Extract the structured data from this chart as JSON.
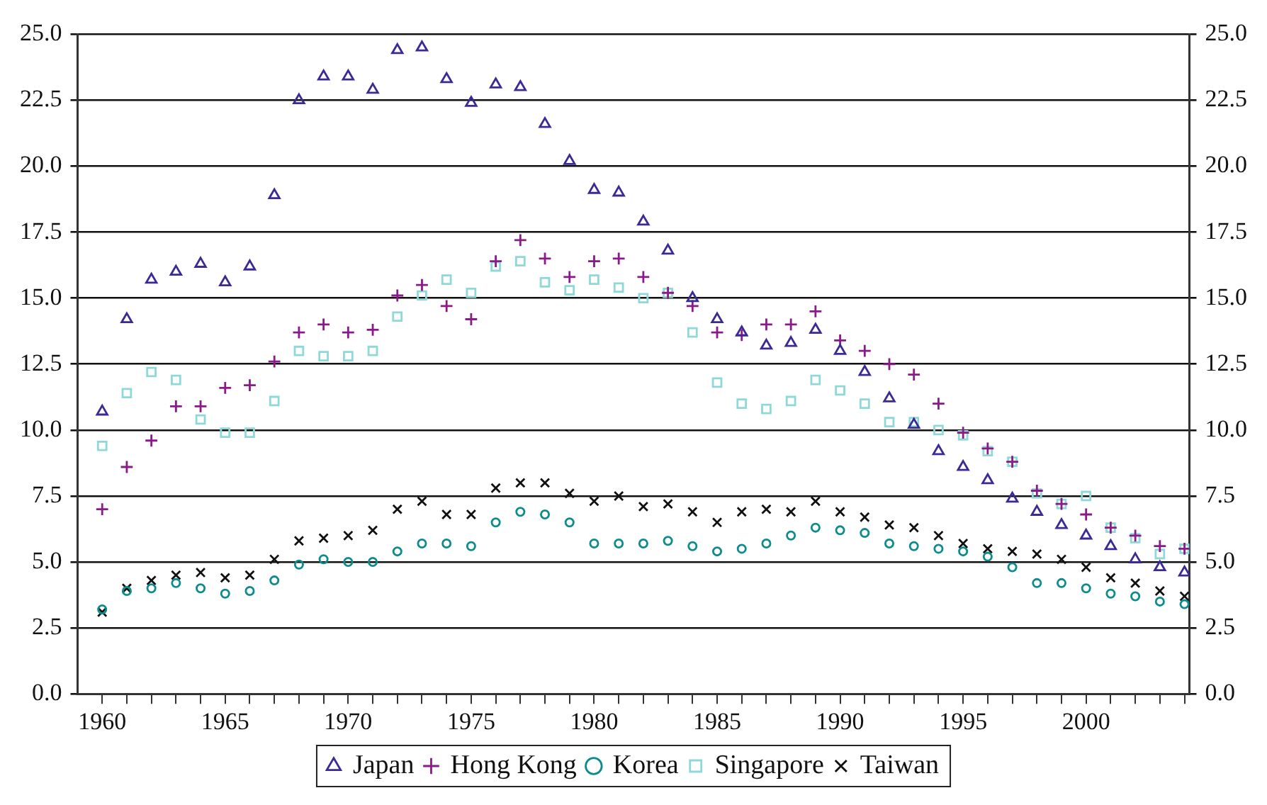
{
  "chart_data": {
    "type": "scatter",
    "x": [
      1960,
      1961,
      1962,
      1963,
      1964,
      1965,
      1966,
      1967,
      1968,
      1969,
      1970,
      1971,
      1972,
      1973,
      1974,
      1975,
      1976,
      1977,
      1978,
      1979,
      1980,
      1981,
      1982,
      1983,
      1984,
      1985,
      1986,
      1987,
      1988,
      1989,
      1990,
      1991,
      1992,
      1993,
      1994,
      1995,
      1996,
      1997,
      1998,
      1999,
      2000,
      2001,
      2002,
      2003,
      2004
    ],
    "series": [
      {
        "name": "Japan",
        "color": "#3a2a96",
        "marker": "triangle",
        "values": [
          10.7,
          14.2,
          15.7,
          16.0,
          16.3,
          15.6,
          16.2,
          18.9,
          22.5,
          23.4,
          23.4,
          22.9,
          24.4,
          24.5,
          23.3,
          22.4,
          23.1,
          23.0,
          21.6,
          20.2,
          19.1,
          19.0,
          17.9,
          16.8,
          15.0,
          14.2,
          13.7,
          13.2,
          13.3,
          13.8,
          13.0,
          12.2,
          11.2,
          10.2,
          9.2,
          8.6,
          8.1,
          7.4,
          6.9,
          6.4,
          6.0,
          5.6,
          5.1,
          4.8,
          4.6
        ]
      },
      {
        "name": "Hong Kong",
        "color": "#8b1a89",
        "marker": "plus",
        "values": [
          7.0,
          8.6,
          9.6,
          10.9,
          10.9,
          11.6,
          11.7,
          12.6,
          13.7,
          14.0,
          13.7,
          13.8,
          15.1,
          15.5,
          14.7,
          14.2,
          16.4,
          17.2,
          16.5,
          15.8,
          16.4,
          16.5,
          15.8,
          15.2,
          14.7,
          13.7,
          13.6,
          14.0,
          14.0,
          14.5,
          13.4,
          13.0,
          12.5,
          12.1,
          11.0,
          9.9,
          9.3,
          8.8,
          7.7,
          7.2,
          6.8,
          6.3,
          6.0,
          5.6,
          5.5
        ]
      },
      {
        "name": "Korea",
        "color": "#0e8c8c",
        "marker": "circle",
        "values": [
          3.2,
          3.9,
          4.0,
          4.2,
          4.0,
          3.8,
          3.9,
          4.3,
          4.9,
          5.1,
          5.0,
          5.0,
          5.4,
          5.7,
          5.7,
          5.6,
          6.5,
          6.9,
          6.8,
          6.5,
          5.7,
          5.7,
          5.7,
          5.8,
          5.6,
          5.4,
          5.5,
          5.7,
          6.0,
          6.3,
          6.2,
          6.1,
          5.7,
          5.6,
          5.5,
          5.4,
          5.2,
          4.8,
          4.2,
          4.2,
          4.0,
          3.8,
          3.7,
          3.5,
          3.4
        ]
      },
      {
        "name": "Singapore",
        "color": "#8fd8d8",
        "marker": "square",
        "values": [
          9.4,
          11.4,
          12.2,
          11.9,
          10.4,
          9.9,
          9.9,
          11.1,
          13.0,
          12.8,
          12.8,
          13.0,
          14.3,
          15.1,
          15.7,
          15.2,
          16.2,
          16.4,
          15.6,
          15.3,
          15.7,
          15.4,
          15.0,
          15.2,
          13.7,
          11.8,
          11.0,
          10.8,
          11.1,
          11.9,
          11.5,
          11.0,
          10.3,
          10.3,
          10.0,
          9.8,
          9.2,
          8.8,
          7.6,
          7.2,
          7.5,
          6.3,
          5.9,
          5.3,
          5.5
        ]
      },
      {
        "name": "Taiwan",
        "color": "#111111",
        "marker": "cross",
        "values": [
          3.1,
          4.0,
          4.3,
          4.5,
          4.6,
          4.4,
          4.5,
          5.1,
          5.8,
          5.9,
          6.0,
          6.2,
          7.0,
          7.3,
          6.8,
          6.8,
          7.8,
          8.0,
          8.0,
          7.6,
          7.3,
          7.5,
          7.1,
          7.2,
          6.9,
          6.5,
          6.9,
          7.0,
          6.9,
          7.3,
          6.9,
          6.7,
          6.4,
          6.3,
          6.0,
          5.7,
          5.5,
          5.4,
          5.3,
          5.1,
          4.8,
          4.4,
          4.2,
          3.9,
          3.7
        ]
      }
    ],
    "xlim": [
      1959,
      2004.2
    ],
    "xticks": [
      1960,
      {
        "value": 1961,
        "label": null
      },
      {
        "value": 1962,
        "label": null
      },
      {
        "value": 1963,
        "label": null
      },
      {
        "value": 1964,
        "label": null
      },
      1965,
      {
        "value": 1966,
        "label": null
      },
      {
        "value": 1967,
        "label": null
      },
      {
        "value": 1968,
        "label": null
      },
      {
        "value": 1969,
        "label": null
      },
      1970,
      {
        "value": 1971,
        "label": null
      },
      {
        "value": 1972,
        "label": null
      },
      {
        "value": 1973,
        "label": null
      },
      {
        "value": 1974,
        "label": null
      },
      1975,
      {
        "value": 1976,
        "label": null
      },
      {
        "value": 1977,
        "label": null
      },
      {
        "value": 1978,
        "label": null
      },
      {
        "value": 1979,
        "label": null
      },
      1980,
      {
        "value": 1981,
        "label": null
      },
      {
        "value": 1982,
        "label": null
      },
      {
        "value": 1983,
        "label": null
      },
      {
        "value": 1984,
        "label": null
      },
      1985,
      {
        "value": 1986,
        "label": null
      },
      {
        "value": 1987,
        "label": null
      },
      {
        "value": 1988,
        "label": null
      },
      {
        "value": 1989,
        "label": null
      },
      1990,
      {
        "value": 1991,
        "label": null
      },
      {
        "value": 1992,
        "label": null
      },
      {
        "value": 1993,
        "label": null
      },
      {
        "value": 1994,
        "label": null
      },
      1995,
      {
        "value": 1996,
        "label": null
      },
      {
        "value": 1997,
        "label": null
      },
      {
        "value": 1998,
        "label": null
      },
      {
        "value": 1999,
        "label": null
      },
      2000,
      {
        "value": 2001,
        "label": null
      },
      {
        "value": 2002,
        "label": null
      },
      {
        "value": 2003,
        "label": null
      },
      {
        "value": 2004,
        "label": null
      }
    ],
    "ylim": [
      0,
      25
    ],
    "yticks": [
      {
        "value": 0,
        "label": "0.0"
      },
      {
        "value": 2.5,
        "label": "2.5"
      },
      {
        "value": 5,
        "label": "5.0"
      },
      {
        "value": 7.5,
        "label": "7.5"
      },
      {
        "value": 10,
        "label": "10.0"
      },
      {
        "value": 12.5,
        "label": "12.5"
      },
      {
        "value": 15,
        "label": "15.0"
      },
      {
        "value": 17.5,
        "label": "17.5"
      },
      {
        "value": 20,
        "label": "20.0"
      },
      {
        "value": 22.5,
        "label": "22.5"
      },
      {
        "value": 25,
        "label": "25.0"
      }
    ],
    "y2lim": [
      0,
      25
    ],
    "y2ticks": [
      {
        "value": 0,
        "label": "0.0"
      },
      {
        "value": 2.5,
        "label": "2.5"
      },
      {
        "value": 5,
        "label": "5.0"
      },
      {
        "value": 7.5,
        "label": "7.5"
      },
      {
        "value": 10,
        "label": "10.0"
      },
      {
        "value": 12.5,
        "label": "12.5"
      },
      {
        "value": 15,
        "label": "15.0"
      },
      {
        "value": 17.5,
        "label": "17.5"
      },
      {
        "value": 20,
        "label": "20.0"
      },
      {
        "value": 22.5,
        "label": "22.5"
      },
      {
        "value": 25,
        "label": "25.0"
      }
    ],
    "grid": "y",
    "legend": "bottom"
  }
}
